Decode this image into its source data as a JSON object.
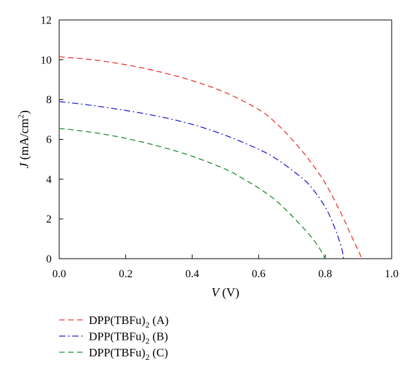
{
  "chart_data": {
    "type": "line",
    "title": "",
    "xlabel": {
      "var": "V",
      "unit": " (V)"
    },
    "ylabel": {
      "var": "J",
      "unit_pre": " (mA/cm",
      "unit_sup": "2",
      "unit_post": ")"
    },
    "xlim": [
      0.0,
      1.0
    ],
    "ylim": [
      0,
      12
    ],
    "xticks": [
      "0.0",
      "0.2",
      "0.4",
      "0.6",
      "0.8",
      "1.0"
    ],
    "yticks": [
      "0",
      "2",
      "4",
      "6",
      "8",
      "10",
      "12"
    ],
    "grid": false,
    "legend_position": "bottom-left, below plot",
    "series": [
      {
        "name": "DPP(TBFu)2 (A)",
        "legend": {
          "base": "DPP(TBFu)",
          "sub": "2",
          "suffix": " (A)"
        },
        "color": "#e8312f",
        "dash": "dashed",
        "x": [
          0.0,
          0.1,
          0.2,
          0.3,
          0.4,
          0.5,
          0.6,
          0.65,
          0.7,
          0.75,
          0.8,
          0.85,
          0.88,
          0.9,
          0.91
        ],
        "y": [
          10.15,
          10.0,
          9.75,
          9.4,
          8.95,
          8.35,
          7.5,
          6.85,
          6.0,
          5.0,
          3.8,
          2.2,
          1.1,
          0.4,
          0.0
        ]
      },
      {
        "name": "DPP(TBFu)2 (B)",
        "legend": {
          "base": "DPP(TBFu)",
          "sub": "2",
          "suffix": " (B)"
        },
        "color": "#1f1fc8",
        "dash": "dashdot",
        "x": [
          0.0,
          0.1,
          0.2,
          0.3,
          0.4,
          0.5,
          0.6,
          0.65,
          0.7,
          0.75,
          0.8,
          0.83,
          0.85,
          0.855
        ],
        "y": [
          7.9,
          7.7,
          7.45,
          7.15,
          6.75,
          6.2,
          5.5,
          5.05,
          4.45,
          3.75,
          2.6,
          1.5,
          0.5,
          0.0
        ]
      },
      {
        "name": "DPP(TBFu)2 (C)",
        "legend": {
          "base": "DPP(TBFu)",
          "sub": "2",
          "suffix": " (C)"
        },
        "color": "#1b8a28",
        "dash": "dashed",
        "x": [
          0.0,
          0.1,
          0.2,
          0.3,
          0.4,
          0.5,
          0.55,
          0.6,
          0.65,
          0.7,
          0.75,
          0.78,
          0.8
        ],
        "y": [
          6.55,
          6.35,
          6.05,
          5.65,
          5.15,
          4.5,
          4.05,
          3.55,
          2.95,
          2.15,
          1.25,
          0.6,
          0.0
        ]
      }
    ]
  }
}
